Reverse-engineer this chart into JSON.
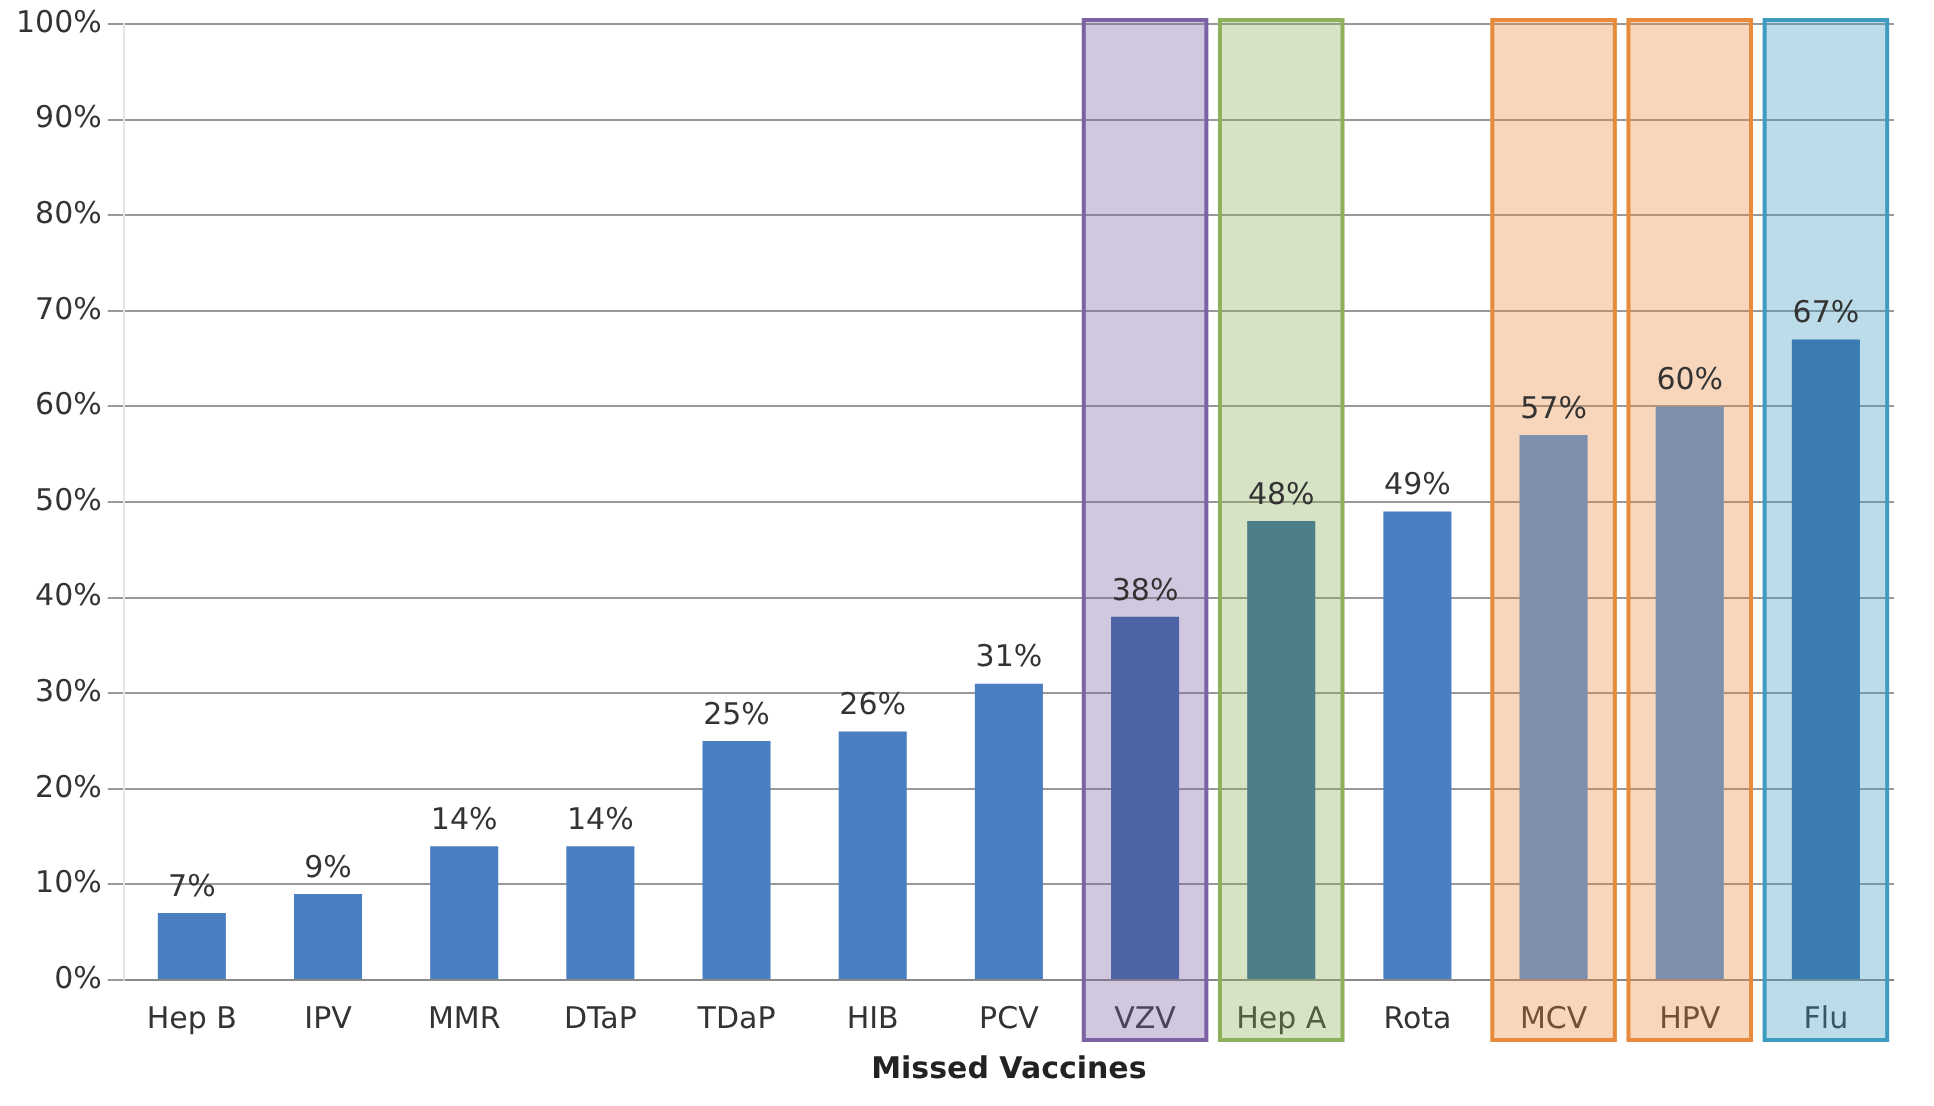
{
  "chart_data": {
    "type": "bar",
    "xlabel": "Missed Vaccines",
    "categories": [
      "Hep B",
      "IPV",
      "MMR",
      "DTaP",
      "TDaP",
      "HIB",
      "PCV",
      "VZV",
      "Hep A",
      "Rota",
      "MCV",
      "HPV",
      "Flu"
    ],
    "values": [
      7,
      9,
      14,
      14,
      25,
      26,
      31,
      38,
      48,
      49,
      57,
      60,
      67
    ],
    "value_labels": [
      "7%",
      "9%",
      "14%",
      "14%",
      "25%",
      "26%",
      "31%",
      "38%",
      "48%",
      "49%",
      "57%",
      "60%",
      "67%"
    ],
    "colors": [
      "#4a7fc1",
      "#4a7fc1",
      "#4a7fc1",
      "#4a7fc1",
      "#4a7fc1",
      "#4a7fc1",
      "#4a7fc1",
      "#4f64a6",
      "#4d7f88",
      "#4a7fc1",
      "#7e8fae",
      "#7e8fae",
      "#3b7bb3"
    ],
    "ylim": [
      0,
      100
    ],
    "yticks": [
      {
        "value": 0,
        "label": "0%"
      },
      {
        "value": 10,
        "label": "10%"
      },
      {
        "value": 20,
        "label": "20%"
      },
      {
        "value": 30,
        "label": "30%"
      },
      {
        "value": 40,
        "label": "40%"
      },
      {
        "value": 50,
        "label": "50%"
      },
      {
        "value": 60,
        "label": "60%"
      },
      {
        "value": 70,
        "label": "70%"
      },
      {
        "value": 80,
        "label": "80%"
      },
      {
        "value": 90,
        "label": "90%"
      },
      {
        "value": 100,
        "label": "100%"
      }
    ],
    "grid": "y",
    "bands": [
      {
        "axis": "x",
        "from": "VZV",
        "to": "VZV",
        "color": "#7b62a3"
      },
      {
        "axis": "x",
        "from": "Hep A",
        "to": "Hep A",
        "color": "#8db05a"
      },
      {
        "axis": "x",
        "from": "MCV",
        "to": "MCV",
        "color": "#e88a3c"
      },
      {
        "axis": "x",
        "from": "HPV",
        "to": "HPV",
        "color": "#e88a3c"
      },
      {
        "axis": "x",
        "from": "Flu",
        "to": "Flu",
        "color": "#3f9bbf"
      }
    ]
  }
}
